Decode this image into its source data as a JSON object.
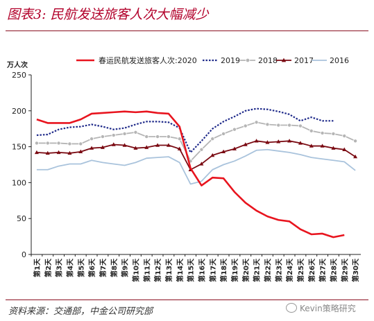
{
  "title": "图表3: 民航发送旅客人次大幅减少",
  "source": "资料来源：交通部，中金公司研究部",
  "watermark": "Kevin策略研究",
  "chart_data": {
    "type": "line",
    "ylabel": "万人次",
    "ylim": [
      0,
      250
    ],
    "yticks": [
      0,
      50,
      100,
      150,
      200,
      250
    ],
    "grid": false,
    "legend": "top",
    "categories": [
      "第1天",
      "第2天",
      "第3天",
      "第4天",
      "第5天",
      "第6天",
      "第7天",
      "第8天",
      "第9天",
      "第10天",
      "第11天",
      "第12天",
      "第13天",
      "第14天",
      "第15天",
      "第16天",
      "第17天",
      "第18天",
      "第19天",
      "第20天",
      "第21天",
      "第22天",
      "第23天",
      "第24天",
      "第25天",
      "第26天",
      "第27天",
      "第28天",
      "第29天",
      "第30天"
    ],
    "series": [
      {
        "name": "春运民航发送旅客人次:2020",
        "color": "#e8141e",
        "style": "solid",
        "marker": "none",
        "values": [
          188,
          183,
          183,
          183,
          188,
          196,
          197,
          198,
          199,
          198,
          199,
          197,
          196,
          178,
          120,
          96,
          107,
          106,
          87,
          72,
          61,
          53,
          48,
          46,
          35,
          28,
          29,
          24,
          27,
          null
        ]
      },
      {
        "name": "2019",
        "color": "#1f2a8a",
        "style": "dotted",
        "marker": "none",
        "values": [
          166,
          167,
          174,
          177,
          178,
          181,
          178,
          174,
          176,
          181,
          185,
          185,
          184,
          176,
          142,
          158,
          175,
          185,
          192,
          200,
          203,
          202,
          199,
          195,
          186,
          191,
          186,
          186,
          null,
          null
        ]
      },
      {
        "name": "2018",
        "color": "#b5b5b5",
        "style": "solid",
        "marker": "circle",
        "values": [
          155,
          155,
          155,
          154,
          154,
          161,
          164,
          166,
          168,
          170,
          164,
          164,
          164,
          161,
          130,
          146,
          161,
          168,
          174,
          179,
          184,
          181,
          180,
          180,
          179,
          172,
          169,
          168,
          165,
          158
        ]
      },
      {
        "name": "2017",
        "color": "#7a0a12",
        "style": "solid",
        "marker": "triangle",
        "values": [
          142,
          141,
          142,
          141,
          143,
          148,
          149,
          153,
          152,
          148,
          149,
          152,
          152,
          147,
          118,
          126,
          138,
          143,
          147,
          153,
          158,
          156,
          157,
          158,
          155,
          151,
          151,
          148,
          146,
          136
        ]
      },
      {
        "name": "2016",
        "color": "#a9c3dc",
        "style": "solid",
        "marker": "none",
        "values": [
          118,
          118,
          123,
          126,
          126,
          131,
          128,
          126,
          124,
          128,
          134,
          135,
          136,
          128,
          98,
          102,
          118,
          125,
          130,
          137,
          145,
          146,
          144,
          142,
          139,
          135,
          133,
          131,
          129,
          117
        ]
      }
    ]
  }
}
